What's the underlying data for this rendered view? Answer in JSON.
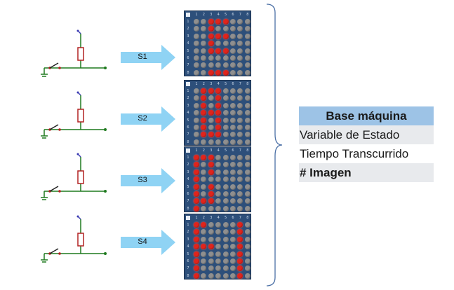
{
  "steps": [
    {
      "label": "S1",
      "leds": [
        "00111000",
        "00100000",
        "00111000",
        "00100000",
        "00111000",
        "00000000",
        "00000000",
        "00111000"
      ]
    },
    {
      "label": "S2",
      "leds": [
        "01110000",
        "01010000",
        "01010000",
        "01110000",
        "01010000",
        "01010000",
        "01110000",
        "00000000"
      ]
    },
    {
      "label": "S3",
      "leds": [
        "11100000",
        "10100000",
        "10100000",
        "10000000",
        "10100000",
        "10100000",
        "11100000",
        "10000000"
      ]
    },
    {
      "label": "S4",
      "leds": [
        "11000010",
        "10000010",
        "10000010",
        "11100010",
        "10000010",
        "10000010",
        "10000010",
        "10000010"
      ]
    }
  ],
  "matrix": {
    "column_numbers": [
      "1",
      "2",
      "3",
      "4",
      "5",
      "6",
      "7",
      "8"
    ],
    "row_numbers": [
      "1",
      "2",
      "3",
      "4",
      "5",
      "6",
      "7",
      "8"
    ]
  },
  "table": {
    "header": "Base máquina",
    "rows": [
      "Variable de Estado",
      "Tiempo Transcurrido",
      "# Imagen"
    ]
  },
  "colors": {
    "arrow": "#8fd3f4",
    "wire": "#1f7a1f",
    "resistor": "#b22222",
    "led_on": "#e0241c",
    "led_off": "#8f8f8f",
    "matrix_bg": "#2d4f7a",
    "header_bg": "#9dc3e6",
    "brace": "#4a6fa5"
  }
}
